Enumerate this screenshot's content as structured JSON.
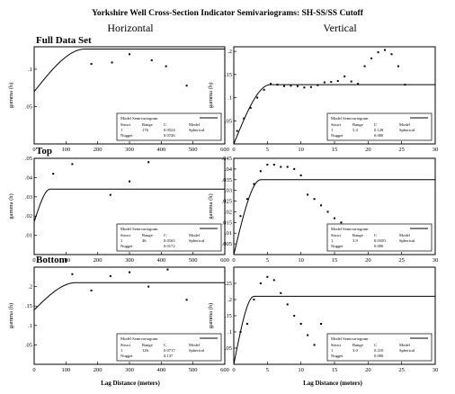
{
  "figure": {
    "title": "Yorkshire Well Cross-Section Indicator Semivariograms: SH-SS/SS Cutoff",
    "col_headers": [
      "Horizontal",
      "Vertical"
    ],
    "row_headers": [
      "Full Data Set",
      "Top",
      "Bottom"
    ],
    "x_label": "Lag Distance (meters)",
    "y_label": "gamma (h)"
  },
  "legend": {
    "header": "Model Semivariogram",
    "col1": "Struct",
    "col2": "Range",
    "col3": "C",
    "col4": "Model",
    "row2_label": "1",
    "row3_label": "Nugget",
    "model_name": "Spherical"
  },
  "chart_data": [
    {
      "type": "scatter",
      "panel": "full-horizontal",
      "xlim": [
        0,
        600
      ],
      "ylim": [
        0,
        0.13
      ],
      "xticks": [
        0,
        100,
        200,
        300,
        400,
        500,
        600
      ],
      "yticks": [
        0.05,
        0.1
      ],
      "x": [
        180,
        245,
        300,
        370,
        415,
        480
      ],
      "y": [
        0.107,
        0.109,
        0.12,
        0.112,
        0.104,
        0.078
      ],
      "model": {
        "nugget": 0.07,
        "sill": 0.127,
        "range": 160
      },
      "legend_values": {
        "range": "176",
        "c": "0.0524",
        "nugget": "0.0726"
      }
    },
    {
      "type": "scatter",
      "panel": "full-vertical",
      "xlim": [
        0,
        30
      ],
      "ylim": [
        0,
        0.21
      ],
      "xticks": [
        0,
        5,
        10,
        15,
        20,
        25,
        30
      ],
      "yticks": [
        0.05,
        0.1,
        0.15,
        0.2
      ],
      "x": [
        0.5,
        1.5,
        2.5,
        3.5,
        4.5,
        5.5,
        6.5,
        7.5,
        8.5,
        9.5,
        10.5,
        11.5,
        12.5,
        13.5,
        14.5,
        15.5,
        16.5,
        17.5,
        18.5,
        19.5,
        20.5,
        21.5,
        22.5,
        23.5,
        24.5,
        25.5
      ],
      "y": [
        0.028,
        0.055,
        0.078,
        0.1,
        0.117,
        0.13,
        0.128,
        0.125,
        0.126,
        0.125,
        0.122,
        0.123,
        0.127,
        0.133,
        0.134,
        0.136,
        0.146,
        0.135,
        0.13,
        0.168,
        0.185,
        0.198,
        0.203,
        0.194,
        0.168,
        0.128
      ],
      "model": {
        "nugget": 0.0,
        "sill": 0.128,
        "range": 5.4
      },
      "legend_values": {
        "range": "5.4",
        "c": "0.128",
        "nugget": "0.000"
      }
    },
    {
      "type": "scatter",
      "panel": "top-horizontal",
      "xlim": [
        0,
        600
      ],
      "ylim": [
        0,
        0.05
      ],
      "xticks": [
        0,
        100,
        200,
        300,
        400,
        500,
        600
      ],
      "yticks": [
        0.01,
        0.02,
        0.03,
        0.04,
        0.05
      ],
      "x": [
        60,
        120,
        180,
        240,
        300,
        360
      ],
      "y": [
        0.042,
        0.047,
        0.051,
        0.031,
        0.038,
        0.048
      ],
      "model": {
        "nugget": 0.017,
        "sill": 0.034,
        "range": 50
      },
      "legend_values": {
        "range": "46",
        "c": "0.0165",
        "nugget": "0.0172"
      }
    },
    {
      "type": "scatter",
      "panel": "top-vertical",
      "xlim": [
        0,
        30
      ],
      "ylim": [
        0,
        0.045
      ],
      "xticks": [
        0,
        5,
        10,
        15,
        20,
        25,
        30
      ],
      "yticks": [
        0.005,
        0.01,
        0.015,
        0.02,
        0.025,
        0.03,
        0.035,
        0.04,
        0.045
      ],
      "x": [
        1,
        2,
        3,
        4,
        5,
        6,
        7,
        8,
        9,
        10,
        11,
        12,
        13,
        14,
        15,
        16,
        17,
        18,
        19,
        20,
        21
      ],
      "y": [
        0.018,
        0.026,
        0.033,
        0.039,
        0.042,
        0.042,
        0.041,
        0.041,
        0.04,
        0.037,
        0.028,
        0.026,
        0.023,
        0.02,
        0.017,
        0.015,
        0.013,
        0.011,
        0.008,
        0.006,
        0.004
      ],
      "model": {
        "nugget": 0.0,
        "sill": 0.035,
        "range": 4.0
      },
      "legend_values": {
        "range": "3.9",
        "c": "0.0350",
        "nugget": "0.000"
      }
    },
    {
      "type": "scatter",
      "panel": "bottom-horizontal",
      "xlim": [
        0,
        600
      ],
      "ylim": [
        0,
        0.25
      ],
      "xticks": [
        0,
        100,
        200,
        300,
        400,
        500,
        600
      ],
      "yticks": [
        0.05,
        0.1,
        0.15,
        0.2
      ],
      "x": [
        120,
        180,
        240,
        300,
        360,
        420,
        480
      ],
      "y": [
        0.232,
        0.19,
        0.227,
        0.237,
        0.2,
        0.244,
        0.166
      ],
      "model": {
        "nugget": 0.14,
        "sill": 0.21,
        "range": 130
      },
      "legend_values": {
        "range": "126",
        "c": "0.0717",
        "nugget": "0.137"
      }
    },
    {
      "type": "scatter",
      "panel": "bottom-vertical",
      "xlim": [
        0,
        30
      ],
      "ylim": [
        0,
        0.3
      ],
      "xticks": [
        0,
        5,
        10,
        15,
        20,
        25,
        30
      ],
      "yticks": [
        0.05,
        0.1,
        0.15,
        0.2,
        0.25
      ],
      "x": [
        1,
        2,
        3,
        4,
        5,
        6,
        7,
        8,
        9,
        10,
        11,
        12,
        13
      ],
      "y": [
        0.1,
        0.125,
        0.2,
        0.25,
        0.27,
        0.26,
        0.22,
        0.185,
        0.15,
        0.125,
        0.09,
        0.06,
        0.125
      ],
      "model": {
        "nugget": 0.0,
        "sill": 0.21,
        "range": 3.0
      },
      "legend_values": {
        "range": "3.0",
        "c": "0.210",
        "nugget": "0.000"
      }
    }
  ]
}
